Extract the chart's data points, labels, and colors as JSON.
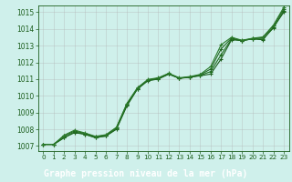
{
  "xlabel": "Graphe pression niveau de la mer (hPa)",
  "ylim": [
    1006.7,
    1015.4
  ],
  "xlim": [
    -0.5,
    23.5
  ],
  "yticks": [
    1007,
    1008,
    1009,
    1010,
    1011,
    1012,
    1013,
    1014,
    1015
  ],
  "xticks": [
    0,
    1,
    2,
    3,
    4,
    5,
    6,
    7,
    8,
    9,
    10,
    11,
    12,
    13,
    14,
    15,
    16,
    17,
    18,
    19,
    20,
    21,
    22,
    23
  ],
  "background_color": "#cff0eb",
  "plot_bg": "#cff0eb",
  "label_bg": "#2d6e2d",
  "label_fg": "#ffffff",
  "line_colors": [
    "#1a5c1a",
    "#1e6e1e",
    "#226622",
    "#2a7a2a"
  ],
  "series": [
    [
      1007.1,
      1007.1,
      1007.5,
      1007.8,
      1007.7,
      1007.5,
      1007.6,
      1008.0,
      1009.4,
      1010.4,
      1010.9,
      1011.0,
      1011.3,
      1011.05,
      1011.1,
      1011.2,
      1011.3,
      1012.2,
      1013.35,
      1013.3,
      1013.4,
      1013.35,
      1014.1,
      1015.0
    ],
    [
      1007.1,
      1007.1,
      1007.5,
      1007.85,
      1007.7,
      1007.5,
      1007.6,
      1008.05,
      1009.45,
      1010.42,
      1010.92,
      1011.02,
      1011.3,
      1011.05,
      1011.12,
      1011.22,
      1011.45,
      1012.45,
      1013.4,
      1013.3,
      1013.4,
      1013.4,
      1014.05,
      1015.1
    ],
    [
      1007.1,
      1007.1,
      1007.6,
      1007.9,
      1007.75,
      1007.55,
      1007.65,
      1008.1,
      1009.5,
      1010.45,
      1010.95,
      1011.05,
      1011.32,
      1011.05,
      1011.12,
      1011.25,
      1011.6,
      1012.8,
      1013.45,
      1013.3,
      1013.42,
      1013.48,
      1014.18,
      1015.2
    ],
    [
      1007.1,
      1007.1,
      1007.65,
      1007.95,
      1007.78,
      1007.58,
      1007.68,
      1008.12,
      1009.55,
      1010.48,
      1010.98,
      1011.08,
      1011.35,
      1011.08,
      1011.15,
      1011.28,
      1011.75,
      1013.05,
      1013.5,
      1013.32,
      1013.44,
      1013.52,
      1014.22,
      1015.3
    ]
  ]
}
